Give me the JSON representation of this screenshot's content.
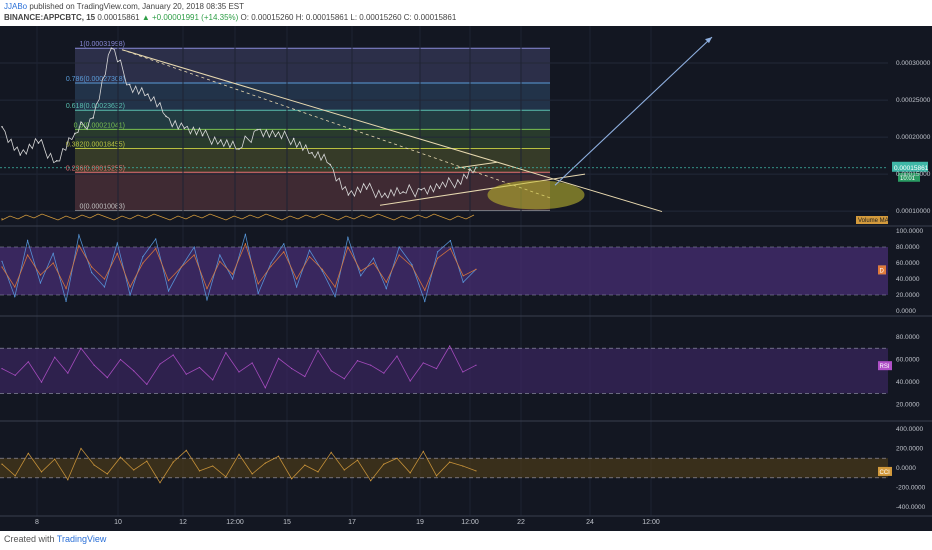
{
  "header": {
    "author": "JJABo",
    "published_text": "published on TradingView.com, January 20, 2018 08:35 EST",
    "symbol": "BINANCE:APPCBTC, 15",
    "last": "0.00015861",
    "change": "▲ +0.00001991 (+14.35%)",
    "ohlc": "O: 0.00015260  H: 0.00015861  L: 0.00015260  C: 0.00015861"
  },
  "footer": {
    "created_with": "Created with",
    "brand": "TradingView"
  },
  "colors": {
    "background": "#131722",
    "price_line": "#d8d8d8",
    "trendline": "#e8d9b0",
    "projection_arrow": "#8fb0e0",
    "highlight_ellipse": "#c8c030",
    "stoch_band": "#4a2f78",
    "rsi_band": "#3a2660",
    "cci_band": "#4a3a18",
    "last_price": "#3fb7a7"
  },
  "chart_data": [
    {
      "type": "line",
      "pane": "price",
      "series": [
        {
          "x": [
            "Jan 7",
            "Jan 7",
            "Jan 8",
            "Jan 8",
            "Jan 9",
            "Jan 9",
            "Jan 10",
            "Jan 10",
            "Jan 11",
            "Jan 11",
            "Jan 12",
            "Jan 12",
            "Jan 13",
            "Jan 13",
            "Jan 14",
            "Jan 14",
            "Jan 15",
            "Jan 15",
            "Jan 16",
            "Jan 16",
            "Jan 17",
            "Jan 17",
            "Jan 18",
            "Jan 18",
            "Jan 19",
            "Jan 19",
            "Jan 20"
          ],
          "values": [
            0.000214,
            0.000176,
            0.000192,
            0.000168,
            0.000205,
            0.000226,
            0.00032,
            0.000271,
            0.000258,
            0.000228,
            0.000212,
            0.000202,
            0.000196,
            0.000184,
            0.00021,
            0.000201,
            0.000198,
            0.000179,
            0.000163,
            0.000122,
            0.00013,
            0.000124,
            0.000126,
            0.000129,
            0.000131,
            0.000142,
            0.000159
          ]
        }
      ],
      "y_ticks": [
        "0.00030000",
        "0.00025000",
        "0.00020000",
        "0.00015000",
        "0.00010000"
      ],
      "ylim": [
        8e-05,
        0.00035
      ],
      "x_ticks": [
        "8",
        "10",
        "12",
        "12:00",
        "15",
        "17",
        "19",
        "12:00",
        "22",
        "24",
        "12:00"
      ],
      "fib_levels": [
        {
          "label": "1(0.00031998)",
          "value": 0.00031998,
          "color": "#8a8ad8"
        },
        {
          "label": "0.786(0.00027308)",
          "value": 0.00027308,
          "color": "#5a9bd8"
        },
        {
          "label": "0.618(0.00023632)",
          "value": 0.00023632,
          "color": "#5ac0b0"
        },
        {
          "label": "0.5(0.00021041)",
          "value": 0.00021041,
          "color": "#7ac050"
        },
        {
          "label": "0.382(0.00018455)",
          "value": 0.00018455,
          "color": "#b8c040"
        },
        {
          "label": "0.236(0.00015255)",
          "value": 0.00015255,
          "color": "#e07070"
        },
        {
          "label": "0(0.00010083)",
          "value": 0.00010083,
          "color": "#c0c0c0"
        }
      ],
      "last_price_label": "0.00015861",
      "countdown_label": "10:01",
      "volume_label": "Volume MA"
    },
    {
      "type": "line",
      "pane": "stoch",
      "y_ticks": [
        "100.0000",
        "80.0000",
        "60.0000",
        "40.0000",
        "20.0000",
        "0.0000"
      ],
      "ylim": [
        0,
        100
      ],
      "band": [
        20,
        80
      ],
      "series": [
        {
          "name": "K",
          "color": "#5a9be0",
          "values": [
            62,
            18,
            88,
            35,
            72,
            12,
            95,
            48,
            30,
            85,
            20,
            68,
            90,
            25,
            55,
            80,
            14,
            70,
            40,
            96,
            22,
            60,
            84,
            30,
            76,
            50,
            18,
            92,
            44,
            66,
            28,
            80,
            58,
            12,
            74,
            88,
            36,
            52
          ]
        },
        {
          "name": "D",
          "color": "#e07a3a",
          "values": [
            55,
            30,
            70,
            45,
            60,
            28,
            82,
            55,
            40,
            72,
            30,
            60,
            78,
            38,
            55,
            70,
            28,
            62,
            46,
            84,
            34,
            56,
            74,
            40,
            68,
            52,
            30,
            80,
            50,
            60,
            36,
            70,
            56,
            26,
            66,
            78,
            44,
            52
          ]
        }
      ]
    },
    {
      "type": "line",
      "pane": "rsi",
      "y_ticks": [
        "80.0000",
        "60.0000",
        "40.0000",
        "20.0000"
      ],
      "ylim": [
        10,
        95
      ],
      "band": [
        30,
        70
      ],
      "series": [
        {
          "name": "RSI",
          "color": "#b04fc8",
          "values": [
            52,
            46,
            58,
            40,
            62,
            48,
            70,
            55,
            44,
            60,
            50,
            38,
            56,
            64,
            47,
            53,
            42,
            66,
            49,
            57,
            35,
            61,
            52,
            45,
            68,
            50,
            43,
            59,
            55,
            48,
            63,
            41,
            57,
            52,
            72,
            49,
            55
          ]
        }
      ]
    },
    {
      "type": "line",
      "pane": "cci",
      "y_ticks": [
        "400.0000",
        "200.0000",
        "0.0000",
        "-200.0000",
        "-400.0000"
      ],
      "ylim": [
        -450,
        450
      ],
      "band": [
        -100,
        100
      ],
      "series": [
        {
          "name": "CCI",
          "color": "#d39a3c",
          "values": [
            40,
            -80,
            150,
            -40,
            90,
            -120,
            200,
            30,
            -60,
            110,
            -20,
            70,
            -150,
            60,
            180,
            -30,
            20,
            -90,
            140,
            -60,
            50,
            120,
            -110,
            30,
            -40,
            160,
            -20,
            80,
            -130,
            40,
            100,
            -50,
            170,
            -80,
            60,
            20,
            -30
          ]
        }
      ]
    }
  ]
}
